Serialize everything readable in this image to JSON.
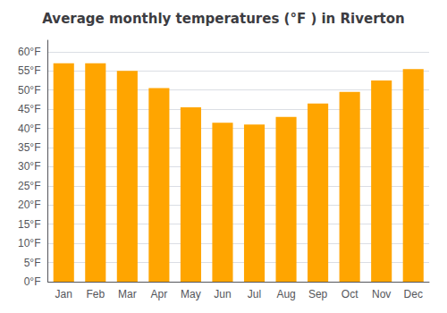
{
  "chart_data": {
    "type": "bar",
    "title": "Average monthly temperatures (°F ) in Riverton",
    "categories": [
      "Jan",
      "Feb",
      "Mar",
      "Apr",
      "May",
      "Jun",
      "Jul",
      "Aug",
      "Sep",
      "Oct",
      "Nov",
      "Dec"
    ],
    "values": [
      57.0,
      57.0,
      55.0,
      50.5,
      45.5,
      41.5,
      41.0,
      43.0,
      46.5,
      49.5,
      52.5,
      55.5
    ],
    "color": "#FFA500",
    "ylim": [
      0,
      63
    ],
    "yticks": [
      {
        "value": 0,
        "label": "0°F"
      },
      {
        "value": 5,
        "label": "5°F"
      },
      {
        "value": 10,
        "label": "10°F"
      },
      {
        "value": 15,
        "label": "15°F"
      },
      {
        "value": 20,
        "label": "20°F"
      },
      {
        "value": 25,
        "label": "25°F"
      },
      {
        "value": 30,
        "label": "30°F"
      },
      {
        "value": 35,
        "label": "35°F"
      },
      {
        "value": 40,
        "label": "40°F"
      },
      {
        "value": 45,
        "label": "45°F"
      },
      {
        "value": 50,
        "label": "50°F"
      },
      {
        "value": 55,
        "label": "55°F"
      },
      {
        "value": 60,
        "label": "60°F"
      }
    ],
    "grid": true
  }
}
